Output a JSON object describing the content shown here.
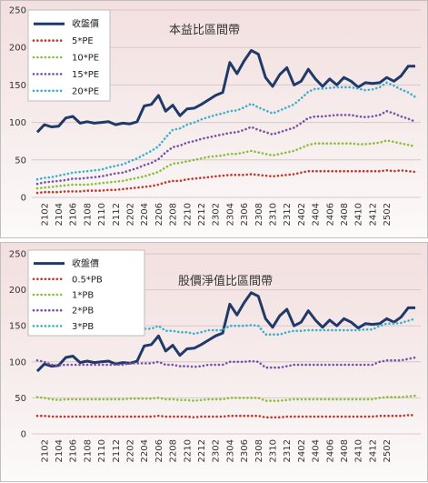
{
  "chart_data": [
    {
      "type": "line",
      "title": "本益比區間帶",
      "xlabel": "",
      "ylabel": "",
      "ylim": [
        0,
        250
      ],
      "y_ticks": [
        0,
        50,
        100,
        150,
        200,
        250
      ],
      "grid": true,
      "legend_position": "top-left",
      "x_tick_labels": [
        "2102",
        "2104",
        "2106",
        "2108",
        "2110",
        "2112",
        "2202",
        "2204",
        "2206",
        "2208",
        "2210",
        "2212",
        "2302",
        "2304",
        "2306",
        "2308",
        "2310",
        "2312",
        "2402",
        "2404",
        "2406",
        "2408",
        "2410",
        "2412",
        "2502"
      ],
      "x_start": "2101",
      "series": [
        {
          "name": "收盤價",
          "color": "#1f3a68",
          "style": "solid",
          "values": [
            87,
            97,
            94,
            95,
            106,
            108,
            99,
            101,
            99,
            100,
            101,
            97,
            99,
            98,
            101,
            122,
            124,
            136,
            115,
            123,
            109,
            118,
            119,
            124,
            130,
            136,
            140,
            180,
            165,
            182,
            196,
            191,
            160,
            148,
            164,
            173,
            150,
            155,
            171,
            158,
            148,
            158,
            150,
            160,
            155,
            147,
            153,
            152,
            153,
            160,
            155,
            162,
            175,
            175
          ]
        },
        {
          "name": "5*PE",
          "color": "#c0392b",
          "style": "dotted",
          "values": [
            6,
            7,
            7,
            7,
            8,
            8,
            8,
            9,
            9,
            9,
            10,
            10,
            11,
            12,
            13,
            14,
            15,
            17,
            20,
            22,
            22,
            24,
            25,
            26,
            27,
            28,
            29,
            30,
            30,
            30,
            31,
            30,
            29,
            28,
            29,
            30,
            31,
            33,
            35,
            35,
            35,
            35,
            35,
            35,
            35,
            35,
            35,
            35,
            35,
            36,
            35,
            36,
            35,
            34
          ]
        },
        {
          "name": "10*PE",
          "color": "#8bbf3a",
          "style": "dotted",
          "values": [
            12,
            13,
            14,
            15,
            16,
            17,
            17,
            17,
            18,
            19,
            20,
            21,
            22,
            24,
            26,
            28,
            31,
            34,
            40,
            45,
            46,
            48,
            50,
            52,
            54,
            55,
            56,
            58,
            58,
            60,
            62,
            60,
            58,
            56,
            58,
            60,
            62,
            66,
            70,
            72,
            72,
            72,
            72,
            72,
            72,
            71,
            71,
            72,
            73,
            76,
            74,
            72,
            70,
            68
          ]
        },
        {
          "name": "15*PE",
          "color": "#7a52a6",
          "style": "dotted",
          "values": [
            18,
            20,
            21,
            22,
            23,
            25,
            25,
            26,
            27,
            28,
            30,
            32,
            33,
            36,
            39,
            43,
            46,
            51,
            60,
            67,
            69,
            73,
            75,
            78,
            80,
            82,
            84,
            86,
            87,
            90,
            94,
            90,
            87,
            84,
            87,
            90,
            93,
            99,
            106,
            108,
            108,
            109,
            110,
            110,
            110,
            108,
            107,
            108,
            110,
            115,
            112,
            108,
            105,
            101
          ]
        },
        {
          "name": "20*PE",
          "color": "#3bb2c8",
          "style": "dotted",
          "values": [
            24,
            26,
            27,
            29,
            31,
            33,
            34,
            35,
            36,
            37,
            40,
            42,
            44,
            48,
            52,
            57,
            62,
            68,
            80,
            90,
            92,
            97,
            100,
            104,
            107,
            110,
            112,
            115,
            116,
            120,
            125,
            120,
            116,
            112,
            116,
            120,
            124,
            132,
            141,
            145,
            145,
            146,
            147,
            147,
            147,
            145,
            143,
            144,
            147,
            153,
            149,
            144,
            140,
            134
          ]
        }
      ]
    },
    {
      "type": "line",
      "title": "股價淨值比區間帶",
      "xlabel": "",
      "ylabel": "",
      "ylim": [
        0,
        250
      ],
      "y_ticks": [
        0,
        50,
        100,
        150,
        200,
        250
      ],
      "grid": true,
      "legend_position": "top-left",
      "x_tick_labels": [
        "2102",
        "2104",
        "2106",
        "2108",
        "2110",
        "2112",
        "2202",
        "2204",
        "2206",
        "2208",
        "2210",
        "2212",
        "2302",
        "2304",
        "2306",
        "2308",
        "2310",
        "2312",
        "2402",
        "2404",
        "2406",
        "2408",
        "2410",
        "2412",
        "2502"
      ],
      "x_start": "2101",
      "series": [
        {
          "name": "收盤價",
          "color": "#1f3a68",
          "style": "solid",
          "values": [
            87,
            97,
            94,
            95,
            106,
            108,
            99,
            101,
            99,
            100,
            101,
            97,
            99,
            98,
            101,
            122,
            124,
            136,
            115,
            123,
            109,
            118,
            119,
            124,
            130,
            136,
            140,
            180,
            165,
            182,
            196,
            191,
            160,
            148,
            164,
            173,
            150,
            155,
            171,
            158,
            148,
            158,
            150,
            160,
            155,
            147,
            153,
            152,
            153,
            160,
            155,
            162,
            175,
            175
          ]
        },
        {
          "name": "0.5*PB",
          "color": "#c0392b",
          "style": "dotted",
          "values": [
            25,
            25,
            24,
            24,
            24,
            24,
            24,
            24,
            24,
            24,
            24,
            24,
            24,
            24,
            24,
            24,
            24,
            25,
            24,
            24,
            24,
            24,
            23,
            24,
            24,
            24,
            24,
            25,
            25,
            25,
            25,
            25,
            23,
            23,
            23,
            24,
            24,
            24,
            24,
            24,
            24,
            24,
            24,
            24,
            24,
            24,
            24,
            24,
            25,
            25,
            25,
            25,
            26,
            26
          ]
        },
        {
          "name": "1*PB",
          "color": "#8bbf3a",
          "style": "dotted",
          "values": [
            51,
            50,
            48,
            47,
            48,
            48,
            48,
            48,
            48,
            48,
            48,
            48,
            48,
            49,
            49,
            49,
            49,
            50,
            48,
            48,
            47,
            47,
            46,
            47,
            48,
            48,
            48,
            50,
            50,
            50,
            50,
            50,
            46,
            46,
            46,
            47,
            48,
            48,
            48,
            48,
            48,
            48,
            48,
            48,
            48,
            48,
            48,
            48,
            50,
            51,
            51,
            51,
            52,
            53
          ]
        },
        {
          "name": "2*PB",
          "color": "#7a52a6",
          "style": "dotted",
          "values": [
            102,
            100,
            96,
            95,
            96,
            96,
            96,
            96,
            96,
            96,
            96,
            96,
            96,
            98,
            98,
            98,
            98,
            100,
            96,
            96,
            94,
            94,
            93,
            94,
            96,
            96,
            96,
            100,
            100,
            100,
            101,
            100,
            92,
            92,
            92,
            94,
            96,
            96,
            96,
            96,
            96,
            96,
            96,
            96,
            96,
            96,
            96,
            96,
            100,
            102,
            102,
            102,
            104,
            106
          ]
        },
        {
          "name": "3*PB",
          "color": "#3bb2c8",
          "style": "dotted",
          "values": [
            152,
            150,
            145,
            143,
            144,
            144,
            144,
            144,
            144,
            144,
            144,
            144,
            144,
            146,
            146,
            146,
            146,
            150,
            143,
            143,
            141,
            141,
            139,
            141,
            144,
            144,
            144,
            150,
            150,
            150,
            151,
            150,
            138,
            138,
            138,
            141,
            143,
            143,
            144,
            144,
            144,
            144,
            144,
            144,
            144,
            144,
            145,
            145,
            150,
            153,
            153,
            154,
            157,
            160
          ]
        }
      ]
    }
  ]
}
